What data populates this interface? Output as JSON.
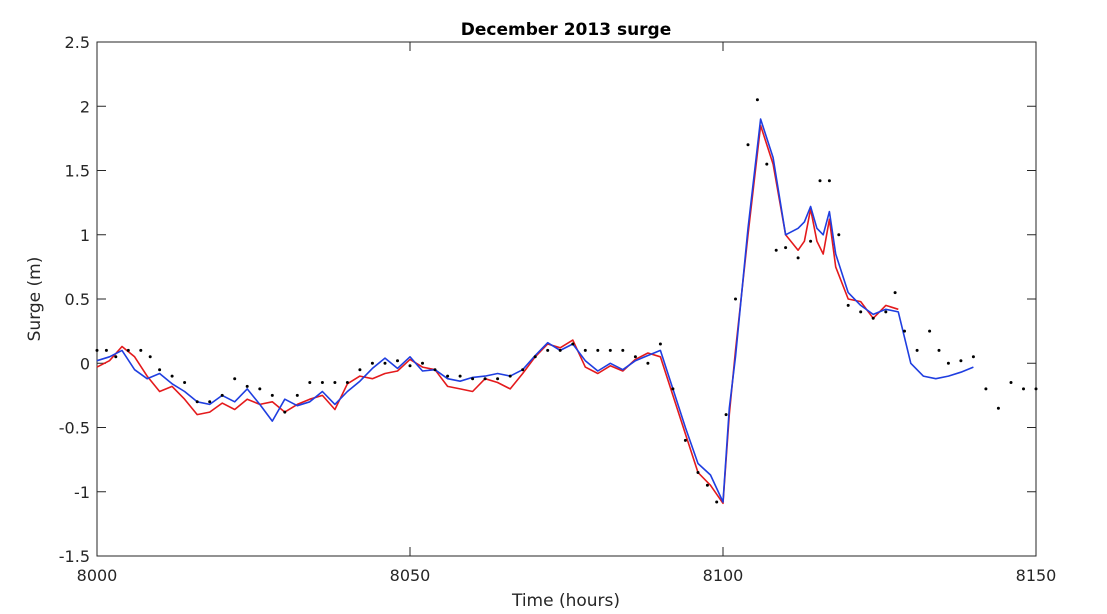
{
  "chart_data": {
    "type": "line",
    "title": "December 2013 surge",
    "xlabel": "Time (hours)",
    "ylabel": "Surge (m)",
    "xlim": [
      8000,
      8150
    ],
    "ylim": [
      -1.5,
      2.5
    ],
    "xticks": [
      8000,
      8050,
      8100,
      8150
    ],
    "yticks": [
      -1.5,
      -1,
      -0.5,
      0,
      0.5,
      1,
      1.5,
      2,
      2.5
    ],
    "xtick_labels": [
      "8000",
      "8050",
      "8100",
      "8150"
    ],
    "ytick_labels": [
      "-1.5",
      "-1",
      "-0.5",
      "0",
      "0.5",
      "1",
      "1.5",
      "2",
      "2.5"
    ],
    "grid": false,
    "legend": "none",
    "series": [
      {
        "color": "#e41a1c",
        "style": "line",
        "x": [
          8000,
          8002,
          8004,
          8006,
          8008,
          8010,
          8012,
          8014,
          8016,
          8018,
          8020,
          8022,
          8024,
          8026,
          8028,
          8030,
          8032,
          8034,
          8036,
          8038,
          8040,
          8042,
          8044,
          8046,
          8048,
          8050,
          8052,
          8054,
          8056,
          8058,
          8060,
          8062,
          8064,
          8066,
          8068,
          8070,
          8072,
          8074,
          8076,
          8078,
          8080,
          8082,
          8084,
          8086,
          8088,
          8090,
          8092,
          8094,
          8096,
          8098,
          8100,
          8101,
          8102,
          8104,
          8106,
          8108,
          8110,
          8112,
          8113,
          8114,
          8115,
          8116,
          8117,
          8118,
          8120,
          8122,
          8124,
          8126,
          8128
        ],
        "y": [
          -0.03,
          0.02,
          0.13,
          0.05,
          -0.1,
          -0.22,
          -0.18,
          -0.28,
          -0.4,
          -0.38,
          -0.31,
          -0.36,
          -0.28,
          -0.32,
          -0.3,
          -0.38,
          -0.32,
          -0.28,
          -0.25,
          -0.36,
          -0.16,
          -0.1,
          -0.12,
          -0.08,
          -0.06,
          0.03,
          -0.03,
          -0.05,
          -0.18,
          -0.2,
          -0.22,
          -0.12,
          -0.15,
          -0.2,
          -0.08,
          0.05,
          0.15,
          0.12,
          0.18,
          -0.03,
          -0.08,
          -0.02,
          -0.06,
          0.03,
          0.08,
          0.05,
          -0.25,
          -0.55,
          -0.85,
          -0.95,
          -1.09,
          -0.4,
          0.1,
          1.0,
          1.85,
          1.55,
          1.0,
          0.88,
          0.95,
          1.2,
          0.95,
          0.85,
          1.12,
          0.75,
          0.5,
          0.48,
          0.35,
          0.45,
          0.42
        ]
      },
      {
        "color": "#1f3ee0",
        "style": "line",
        "x": [
          8000,
          8002,
          8004,
          8006,
          8008,
          8010,
          8012,
          8014,
          8016,
          8018,
          8020,
          8022,
          8024,
          8026,
          8028,
          8030,
          8032,
          8034,
          8036,
          8038,
          8040,
          8042,
          8044,
          8046,
          8048,
          8050,
          8052,
          8054,
          8056,
          8058,
          8060,
          8062,
          8064,
          8066,
          8068,
          8070,
          8072,
          8074,
          8076,
          8078,
          8080,
          8082,
          8084,
          8086,
          8088,
          8090,
          8092,
          8094,
          8096,
          8098,
          8100,
          8101,
          8102,
          8104,
          8106,
          8108,
          8110,
          8112,
          8113,
          8114,
          8115,
          8116,
          8117,
          8118,
          8120,
          8122,
          8124,
          8126,
          8128,
          8130,
          8132,
          8134,
          8136,
          8138,
          8140
        ],
        "y": [
          0.02,
          0.05,
          0.1,
          -0.05,
          -0.12,
          -0.08,
          -0.16,
          -0.22,
          -0.3,
          -0.32,
          -0.25,
          -0.3,
          -0.2,
          -0.32,
          -0.45,
          -0.28,
          -0.33,
          -0.3,
          -0.22,
          -0.32,
          -0.22,
          -0.14,
          -0.04,
          0.04,
          -0.04,
          0.05,
          -0.06,
          -0.05,
          -0.12,
          -0.14,
          -0.11,
          -0.1,
          -0.08,
          -0.1,
          -0.05,
          0.06,
          0.16,
          0.1,
          0.15,
          0.02,
          -0.06,
          0.0,
          -0.05,
          0.02,
          0.06,
          0.1,
          -0.2,
          -0.5,
          -0.78,
          -0.87,
          -1.08,
          -0.35,
          0.05,
          1.05,
          1.9,
          1.6,
          1.0,
          1.05,
          1.1,
          1.22,
          1.05,
          1.0,
          1.18,
          0.85,
          0.55,
          0.45,
          0.38,
          0.42,
          0.4,
          0.0,
          -0.1,
          -0.12,
          -0.1,
          -0.07,
          -0.03
        ]
      },
      {
        "color": "#000000",
        "style": "dots",
        "x": [
          8000,
          8001.5,
          8003,
          8005,
          8007,
          8008.5,
          8010,
          8012,
          8014,
          8016,
          8018,
          8020,
          8022,
          8024,
          8026,
          8028,
          8030,
          8032,
          8034,
          8036,
          8038,
          8040,
          8042,
          8044,
          8046,
          8048,
          8050,
          8052,
          8054,
          8056,
          8058,
          8060,
          8062,
          8064,
          8066,
          8068,
          8070,
          8072,
          8074,
          8076,
          8078,
          8080,
          8082,
          8084,
          8086,
          8088,
          8090,
          8092,
          8094,
          8096,
          8097.5,
          8099,
          8100.5,
          8102,
          8104,
          8105.5,
          8107,
          8108.5,
          8110,
          8112,
          8114,
          8115.5,
          8117,
          8118.5,
          8120,
          8122,
          8124,
          8126,
          8127.5,
          8129,
          8131,
          8133,
          8134.5,
          8136,
          8138,
          8140,
          8142,
          8144,
          8146,
          8148,
          8150
        ],
        "y": [
          0.1,
          0.1,
          0.05,
          0.1,
          0.1,
          0.05,
          -0.05,
          -0.1,
          -0.15,
          -0.3,
          -0.3,
          -0.25,
          -0.12,
          -0.18,
          -0.2,
          -0.25,
          -0.38,
          -0.25,
          -0.15,
          -0.15,
          -0.15,
          -0.15,
          -0.05,
          0.0,
          0.0,
          0.02,
          -0.02,
          0.0,
          -0.05,
          -0.1,
          -0.1,
          -0.12,
          -0.12,
          -0.12,
          -0.1,
          -0.05,
          0.05,
          0.1,
          0.1,
          0.15,
          0.1,
          0.1,
          0.1,
          0.1,
          0.05,
          0.0,
          0.15,
          -0.2,
          -0.6,
          -0.85,
          -0.95,
          -1.08,
          -0.4,
          0.5,
          1.7,
          2.05,
          1.55,
          0.88,
          0.9,
          0.82,
          0.95,
          1.42,
          1.42,
          1.0,
          0.45,
          0.4,
          0.35,
          0.4,
          0.55,
          0.25,
          0.1,
          0.25,
          0.1,
          0.0,
          0.02,
          0.05,
          -0.2,
          -0.35,
          -0.15,
          -0.2,
          -0.2
        ]
      }
    ]
  }
}
